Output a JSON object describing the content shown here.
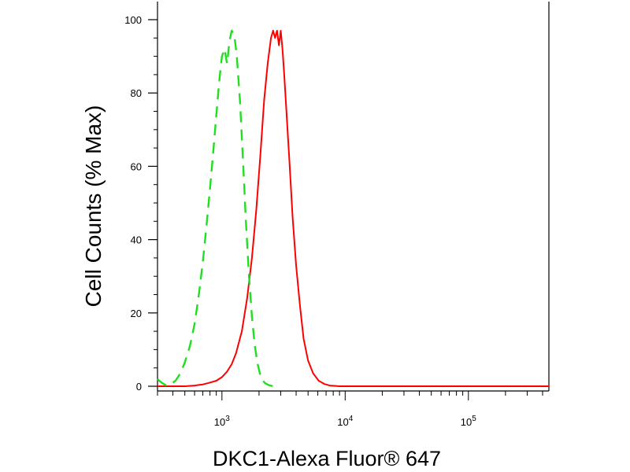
{
  "chart_data": {
    "type": "line",
    "xlabel": "DKC1-Alexa Fluor® 647",
    "ylabel": "Cell Counts (% Max)",
    "x_scale": "log",
    "xlim": [
      300,
      450000
    ],
    "ylim": [
      0,
      100
    ],
    "y_ticks": [
      0,
      20,
      40,
      60,
      80,
      100
    ],
    "y_tick_labels": [
      "0",
      "20",
      "40",
      "60",
      "80",
      "100"
    ],
    "x_ticks": [
      1000,
      10000,
      100000
    ],
    "x_tick_labels": [
      {
        "base": "10",
        "exp": "3"
      },
      {
        "base": "10",
        "exp": "4"
      },
      {
        "base": "10",
        "exp": "5"
      }
    ],
    "grid": false,
    "series": [
      {
        "color": "#ff0000",
        "style": "solid",
        "x": [
          300,
          500,
          600,
          700,
          800,
          900,
          1000,
          1100,
          1200,
          1300,
          1450,
          1600,
          1750,
          1900,
          2050,
          2200,
          2350,
          2500,
          2600,
          2700,
          2800,
          2900,
          3000,
          3100,
          3200,
          3350,
          3550,
          3750,
          4000,
          4300,
          4600,
          5000,
          5500,
          6100,
          6800,
          7500,
          8200,
          9000,
          10000,
          100000,
          450000
        ],
        "y": [
          0,
          0,
          0.2,
          0.5,
          1,
          1.5,
          2.5,
          4,
          6,
          9,
          15,
          24,
          35,
          48,
          63,
          78,
          88,
          95,
          97,
          95,
          97,
          93,
          97,
          92,
          85,
          74,
          60,
          46,
          33,
          22,
          13,
          7,
          3.5,
          1.5,
          0.6,
          0.2,
          0.1,
          0,
          0,
          0,
          0
        ]
      },
      {
        "color": "#22dd22",
        "style": "dashed",
        "x": [
          300,
          310,
          330,
          350,
          380,
          420,
          460,
          500,
          550,
          600,
          650,
          700,
          750,
          800,
          850,
          900,
          950,
          1000,
          1050,
          1100,
          1150,
          1200,
          1260,
          1320,
          1400,
          1480,
          1560,
          1650,
          1750,
          1850,
          1950,
          2050,
          2150,
          2250,
          2400,
          2600
        ],
        "y": [
          2,
          1.5,
          0.8,
          0.3,
          0.5,
          1.5,
          3.5,
          6.5,
          11,
          17,
          25,
          34,
          44,
          54,
          64,
          74,
          83,
          90,
          92,
          88,
          94,
          97,
          96,
          90,
          78,
          62,
          46,
          31,
          19,
          11,
          6,
          3,
          1.5,
          0.8,
          0.3,
          0
        ]
      }
    ]
  }
}
